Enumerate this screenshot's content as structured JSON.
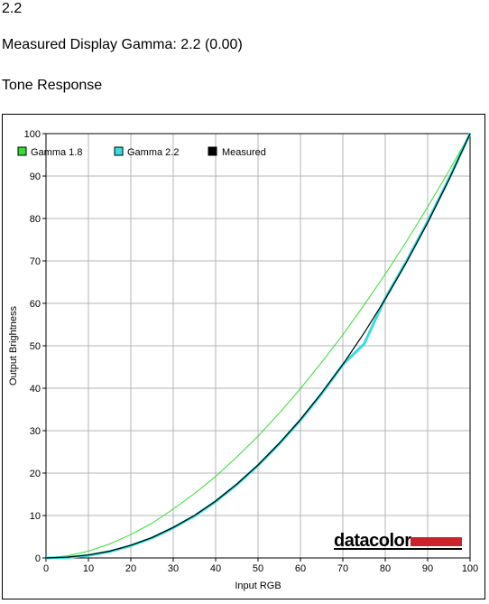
{
  "gamma_value": "2.2",
  "measured_text": "Measured Display Gamma: 2.2 (0.00)",
  "section_title": "Tone Response",
  "brand": {
    "logo_text": "datacolor",
    "logo_accent_color": "#cc2229"
  },
  "chart_data": {
    "type": "line",
    "title": "",
    "xlabel": "Input RGB",
    "ylabel": "Output Brightness",
    "xlim": [
      0,
      100
    ],
    "ylim": [
      0,
      100
    ],
    "x_ticks": [
      0,
      10,
      20,
      30,
      40,
      50,
      60,
      70,
      80,
      90,
      100
    ],
    "y_ticks": [
      0,
      10,
      20,
      30,
      40,
      50,
      60,
      70,
      80,
      90,
      100
    ],
    "grid": true,
    "legend_position": "top-left",
    "x": [
      0,
      5,
      10,
      15,
      20,
      25,
      30,
      35,
      40,
      45,
      50,
      55,
      60,
      65,
      70,
      75,
      80,
      85,
      90,
      95,
      100
    ],
    "series": [
      {
        "name": "Gamma 1.8",
        "color": "#33dd33",
        "values": [
          0,
          0.5,
          1.6,
          3.3,
          5.5,
          8.2,
          11.5,
          15.2,
          19.2,
          23.8,
          28.7,
          34.1,
          39.9,
          46.1,
          52.6,
          59.6,
          66.9,
          74.6,
          82.7,
          91.2,
          100
        ]
      },
      {
        "name": "Gamma 2.2",
        "color": "#33dddd",
        "values": [
          0,
          0.1,
          0.6,
          1.5,
          2.9,
          4.7,
          7.1,
          9.9,
          13.3,
          17.3,
          21.8,
          26.9,
          32.5,
          38.7,
          45.6,
          50.4,
          61.2,
          69.9,
          79.3,
          89.3,
          100
        ]
      },
      {
        "name": "Measured",
        "color": "#000000",
        "values": [
          0,
          0.2,
          0.7,
          1.6,
          3.0,
          4.8,
          7.2,
          10.0,
          13.4,
          17.4,
          21.9,
          27.0,
          32.6,
          38.9,
          45.6,
          53.0,
          61.0,
          69.7,
          79.0,
          89.1,
          100
        ]
      }
    ]
  }
}
